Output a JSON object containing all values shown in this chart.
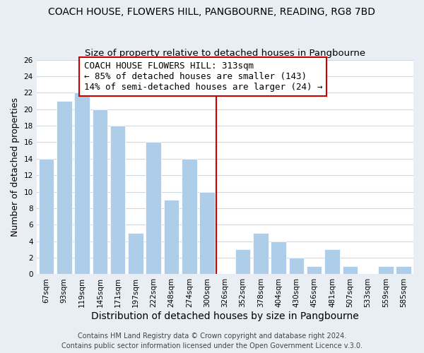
{
  "title": "COACH HOUSE, FLOWERS HILL, PANGBOURNE, READING, RG8 7BD",
  "subtitle": "Size of property relative to detached houses in Pangbourne",
  "xlabel": "Distribution of detached houses by size in Pangbourne",
  "ylabel": "Number of detached properties",
  "bar_labels": [
    "67sqm",
    "93sqm",
    "119sqm",
    "145sqm",
    "171sqm",
    "197sqm",
    "222sqm",
    "248sqm",
    "274sqm",
    "300sqm",
    "326sqm",
    "352sqm",
    "378sqm",
    "404sqm",
    "430sqm",
    "456sqm",
    "481sqm",
    "507sqm",
    "533sqm",
    "559sqm",
    "585sqm"
  ],
  "bar_heights": [
    14,
    21,
    22,
    20,
    18,
    5,
    16,
    9,
    14,
    10,
    0,
    3,
    5,
    4,
    2,
    1,
    3,
    1,
    0,
    1,
    1
  ],
  "bar_color": "#aecde8",
  "bar_edge_color": "#aecde8",
  "grid_color": "#d0d8e0",
  "reference_line_x": 9.5,
  "reference_line_color": "#cc0000",
  "ylim": [
    0,
    26
  ],
  "yticks": [
    0,
    2,
    4,
    6,
    8,
    10,
    12,
    14,
    16,
    18,
    20,
    22,
    24,
    26
  ],
  "annotation_title": "COACH HOUSE FLOWERS HILL: 313sqm",
  "annotation_line1": "← 85% of detached houses are smaller (143)",
  "annotation_line2": "14% of semi-detached houses are larger (24) →",
  "footer_line1": "Contains HM Land Registry data © Crown copyright and database right 2024.",
  "footer_line2": "Contains public sector information licensed under the Open Government Licence v.3.0.",
  "background_color": "#e8eef4",
  "plot_background_color": "#ffffff",
  "title_fontsize": 10,
  "subtitle_fontsize": 9.5,
  "xlabel_fontsize": 10,
  "ylabel_fontsize": 9,
  "tick_fontsize": 7.5,
  "annotation_fontsize": 9,
  "footer_fontsize": 7
}
